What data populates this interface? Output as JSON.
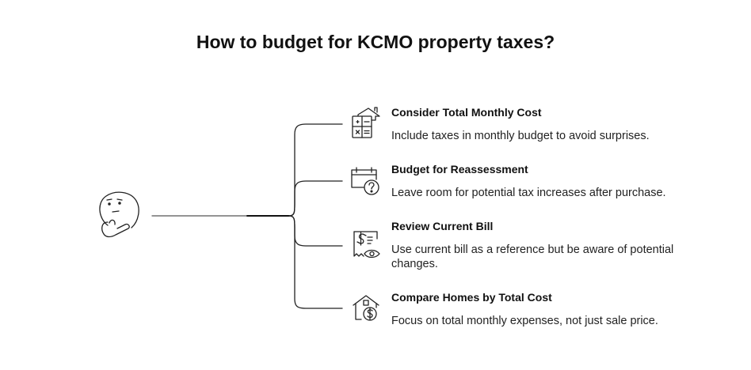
{
  "title": "How to budget for KCMO property taxes?",
  "items": [
    {
      "title": "Consider Total Monthly Cost",
      "description": "Include taxes in monthly budget to avoid surprises.",
      "icon": "calculator-house-icon"
    },
    {
      "title": "Budget for Reassessment",
      "description": "Leave room for potential tax increases after purchase.",
      "icon": "calendar-question-icon"
    },
    {
      "title": "Review Current Bill",
      "description": "Use current bill as a reference but be aware of potential changes.",
      "icon": "receipt-eye-icon"
    },
    {
      "title": "Compare Homes by Total Cost",
      "description": "Focus on total monthly expenses, not just sale price.",
      "icon": "house-dollar-icon"
    }
  ],
  "central_icon": "thinking-face-icon",
  "colors": {
    "line": "#222222",
    "text": "#111111"
  }
}
